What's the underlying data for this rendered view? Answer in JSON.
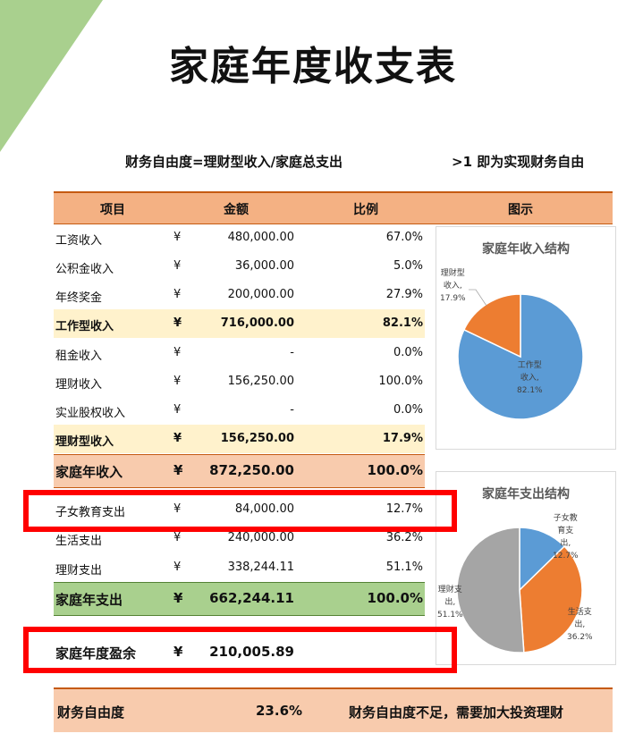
{
  "title": "家庭年度收支表",
  "formula": {
    "left": "财务自由度=理财型收入/家庭总支出",
    "right": ">1 即为实现财务自由"
  },
  "header": {
    "item": "项目",
    "amount": "金额",
    "ratio": "比例",
    "chart": "图示"
  },
  "currency": "¥",
  "rows": [
    {
      "label": "工资收入",
      "amount": "480,000.00",
      "pct": "67.0%"
    },
    {
      "label": "公积金收入",
      "amount": "36,000.00",
      "pct": "5.0%"
    },
    {
      "label": "年终奖金",
      "amount": "200,000.00",
      "pct": "27.9%"
    },
    {
      "label": "工作型收入",
      "amount": "716,000.00",
      "pct": "82.1%"
    },
    {
      "label": "租金收入",
      "amount": "-",
      "pct": "0.0%"
    },
    {
      "label": "理财收入",
      "amount": "156,250.00",
      "pct": "100.0%"
    },
    {
      "label": "实业股权收入",
      "amount": "-",
      "pct": "0.0%"
    },
    {
      "label": "理财型收入",
      "amount": "156,250.00",
      "pct": "17.9%"
    },
    {
      "label": "家庭年收入",
      "amount": "872,250.00",
      "pct": "100.0%"
    },
    {
      "label": "子女教育支出",
      "amount": "84,000.00",
      "pct": "12.7%"
    },
    {
      "label": "生活支出",
      "amount": "240,000.00",
      "pct": "36.2%"
    },
    {
      "label": "理财支出",
      "amount": "338,244.11",
      "pct": "51.1%"
    },
    {
      "label": "家庭年支出",
      "amount": "662,244.11",
      "pct": "100.0%"
    }
  ],
  "balance": {
    "label": "家庭年度盈余",
    "amount": "210,005.89"
  },
  "freedom": {
    "label": "财务自由度",
    "value": "23.6%",
    "note": "财务自由度不足，需要加大投资理财"
  },
  "charts": [
    {
      "title": "家庭年收入结构",
      "slices": [
        {
          "name": "工作型收入",
          "pct": 82.1,
          "label": "82.1%",
          "color": "#5b9bd5",
          "lines": [
            "工作型",
            "收入,"
          ]
        },
        {
          "name": "理财型收入",
          "pct": 17.9,
          "label": "17.9%",
          "color": "#ed7d31",
          "lines": [
            "理财型",
            "收入,"
          ]
        }
      ]
    },
    {
      "title": "家庭年支出结构",
      "slices": [
        {
          "name": "子女教育支出",
          "pct": 12.7,
          "label": "12.7%",
          "color": "#5b9bd5",
          "lines": [
            "子女教",
            "育支",
            "出,"
          ]
        },
        {
          "name": "生活支出",
          "pct": 36.2,
          "label": "36.2%",
          "color": "#ed7d31",
          "lines": [
            "生活支",
            "出,"
          ]
        },
        {
          "name": "理财支出",
          "pct": 51.1,
          "label": "51.1%",
          "color": "#a5a5a5",
          "lines": [
            "理财支",
            "出,"
          ]
        }
      ]
    }
  ],
  "highlight_color": "#ff0000"
}
